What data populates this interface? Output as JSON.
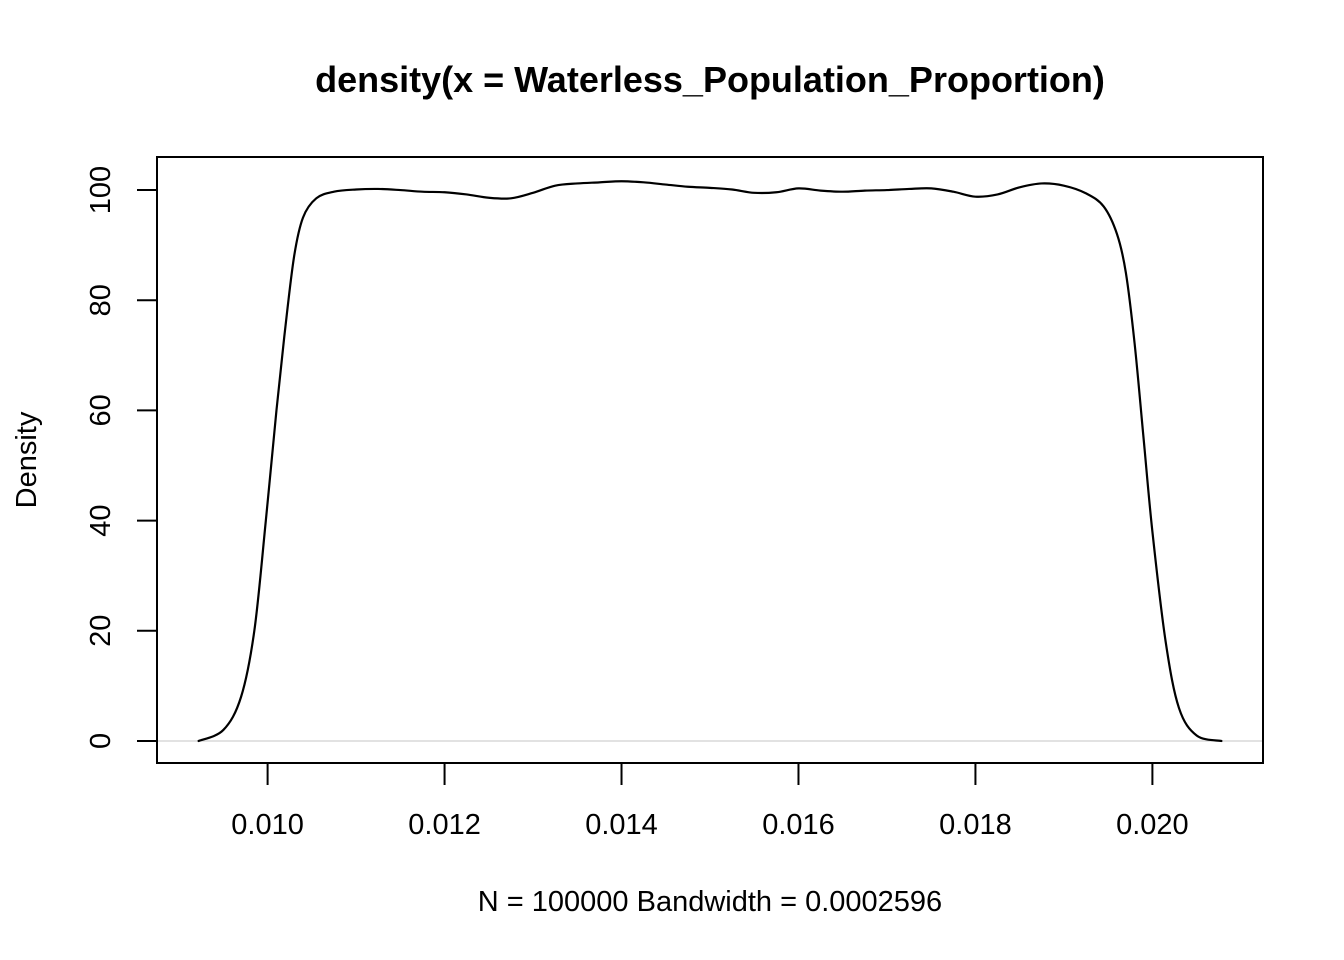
{
  "chart_data": {
    "type": "line",
    "title": "density(x = Waterless_Population_Proportion)",
    "xlabel": "N = 100000   Bandwidth = 0.0002596",
    "ylabel": "Density",
    "xlim": [
      0.00875,
      0.02125
    ],
    "ylim": [
      -4,
      106
    ],
    "x_ticks": [
      0.01,
      0.012,
      0.014,
      0.016,
      0.018,
      0.02
    ],
    "x_tick_labels": [
      "0.010",
      "0.012",
      "0.014",
      "0.016",
      "0.018",
      "0.020"
    ],
    "y_ticks": [
      0,
      20,
      40,
      60,
      80,
      100
    ],
    "y_tick_labels": [
      "0",
      "20",
      "40",
      "60",
      "80",
      "100"
    ],
    "baseline": 0,
    "colors": {
      "line": "#000000",
      "axis": "#000000",
      "baseline": "#d9d9d9"
    },
    "series": [
      {
        "name": "density",
        "x": [
          0.00922,
          0.0095,
          0.0097,
          0.00985,
          0.00998,
          0.0101,
          0.0102,
          0.0103,
          0.0104,
          0.01055,
          0.01075,
          0.011,
          0.01125,
          0.0115,
          0.01175,
          0.012,
          0.01225,
          0.0125,
          0.01275,
          0.013,
          0.01325,
          0.0135,
          0.01375,
          0.014,
          0.01425,
          0.0145,
          0.01475,
          0.015,
          0.01525,
          0.0155,
          0.01575,
          0.016,
          0.01625,
          0.0165,
          0.01675,
          0.017,
          0.01725,
          0.0175,
          0.01775,
          0.018,
          0.01825,
          0.0185,
          0.01875,
          0.019,
          0.01925,
          0.01945,
          0.0196,
          0.0197,
          0.0198,
          0.0199,
          0.02,
          0.02015,
          0.0203,
          0.0205,
          0.02078
        ],
        "y": [
          0.0,
          2.0,
          8.0,
          20.0,
          40.0,
          60.0,
          75.0,
          88.0,
          95.0,
          98.5,
          99.7,
          100.1,
          100.2,
          100.0,
          99.7,
          99.6,
          99.2,
          98.6,
          98.5,
          99.5,
          100.8,
          101.2,
          101.4,
          101.6,
          101.4,
          101.0,
          100.6,
          100.4,
          100.1,
          99.5,
          99.6,
          100.3,
          99.9,
          99.7,
          99.9,
          100.0,
          100.2,
          100.3,
          99.7,
          98.8,
          99.2,
          100.5,
          101.2,
          100.8,
          99.4,
          97.0,
          92.0,
          85.0,
          72.0,
          55.0,
          38.0,
          18.0,
          6.0,
          1.0,
          0.0
        ]
      }
    ]
  }
}
